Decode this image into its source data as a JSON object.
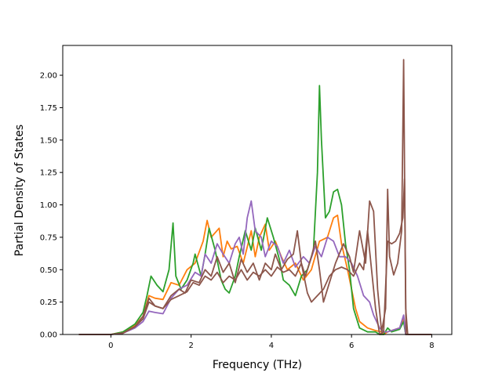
{
  "chart_data": {
    "type": "line",
    "title": "",
    "xlabel": "Frequency (THz)",
    "ylabel": "Partial Density of States",
    "xlim": [
      -1.2,
      8.5
    ],
    "ylim": [
      0.0,
      2.23
    ],
    "xticks": [
      "0",
      "2",
      "4",
      "6",
      "8"
    ],
    "yticks": [
      "0.00",
      "0.25",
      "0.50",
      "0.75",
      "1.00",
      "1.25",
      "1.50",
      "1.75",
      "2.00"
    ],
    "grid": false,
    "legend": "none",
    "series": [
      {
        "color": "#ff7f0e",
        "points": [
          [
            -0.8,
            0
          ],
          [
            0,
            0
          ],
          [
            0.3,
            0.02
          ],
          [
            0.6,
            0.07
          ],
          [
            0.8,
            0.14
          ],
          [
            0.95,
            0.3
          ],
          [
            1.1,
            0.28
          ],
          [
            1.3,
            0.27
          ],
          [
            1.5,
            0.4
          ],
          [
            1.7,
            0.38
          ],
          [
            1.9,
            0.5
          ],
          [
            2.1,
            0.55
          ],
          [
            2.3,
            0.72
          ],
          [
            2.4,
            0.88
          ],
          [
            2.5,
            0.75
          ],
          [
            2.7,
            0.82
          ],
          [
            2.8,
            0.6
          ],
          [
            2.9,
            0.72
          ],
          [
            3.0,
            0.66
          ],
          [
            3.15,
            0.68
          ],
          [
            3.3,
            0.55
          ],
          [
            3.5,
            0.8
          ],
          [
            3.6,
            0.6
          ],
          [
            3.7,
            0.75
          ],
          [
            3.85,
            0.85
          ],
          [
            3.95,
            0.65
          ],
          [
            4.1,
            0.72
          ],
          [
            4.25,
            0.6
          ],
          [
            4.4,
            0.5
          ],
          [
            4.6,
            0.55
          ],
          [
            4.8,
            0.42
          ],
          [
            5.0,
            0.5
          ],
          [
            5.2,
            0.72
          ],
          [
            5.4,
            0.75
          ],
          [
            5.55,
            0.9
          ],
          [
            5.65,
            0.92
          ],
          [
            5.75,
            0.7
          ],
          [
            5.9,
            0.5
          ],
          [
            6.0,
            0.35
          ],
          [
            6.1,
            0.2
          ],
          [
            6.2,
            0.1
          ],
          [
            6.4,
            0.05
          ],
          [
            6.6,
            0.03
          ],
          [
            6.75,
            0.02
          ],
          [
            6.8,
            0
          ],
          [
            6.9,
            0.02
          ],
          [
            7.0,
            0.03
          ],
          [
            7.2,
            0.05
          ],
          [
            7.3,
            0.12
          ],
          [
            7.35,
            0
          ],
          [
            8.0,
            0
          ]
        ]
      },
      {
        "color": "#2ca02c",
        "points": [
          [
            -0.8,
            0
          ],
          [
            0,
            0
          ],
          [
            0.3,
            0.02
          ],
          [
            0.6,
            0.08
          ],
          [
            0.8,
            0.17
          ],
          [
            0.9,
            0.3
          ],
          [
            1.0,
            0.45
          ],
          [
            1.15,
            0.38
          ],
          [
            1.3,
            0.33
          ],
          [
            1.45,
            0.5
          ],
          [
            1.55,
            0.86
          ],
          [
            1.62,
            0.45
          ],
          [
            1.75,
            0.35
          ],
          [
            1.9,
            0.42
          ],
          [
            2.05,
            0.55
          ],
          [
            2.1,
            0.62
          ],
          [
            2.25,
            0.45
          ],
          [
            2.35,
            0.62
          ],
          [
            2.45,
            0.82
          ],
          [
            2.6,
            0.65
          ],
          [
            2.75,
            0.42
          ],
          [
            2.85,
            0.35
          ],
          [
            2.95,
            0.32
          ],
          [
            3.1,
            0.45
          ],
          [
            3.2,
            0.6
          ],
          [
            3.35,
            0.8
          ],
          [
            3.5,
            0.65
          ],
          [
            3.6,
            0.82
          ],
          [
            3.75,
            0.65
          ],
          [
            3.9,
            0.9
          ],
          [
            4.05,
            0.75
          ],
          [
            4.2,
            0.58
          ],
          [
            4.3,
            0.42
          ],
          [
            4.45,
            0.38
          ],
          [
            4.6,
            0.3
          ],
          [
            4.75,
            0.45
          ],
          [
            4.9,
            0.5
          ],
          [
            5.05,
            0.65
          ],
          [
            5.15,
            1.25
          ],
          [
            5.2,
            1.92
          ],
          [
            5.25,
            1.5
          ],
          [
            5.35,
            0.9
          ],
          [
            5.45,
            0.95
          ],
          [
            5.55,
            1.1
          ],
          [
            5.65,
            1.12
          ],
          [
            5.75,
            1.0
          ],
          [
            5.85,
            0.7
          ],
          [
            5.95,
            0.5
          ],
          [
            6.05,
            0.2
          ],
          [
            6.2,
            0.05
          ],
          [
            6.4,
            0.02
          ],
          [
            6.6,
            0.02
          ],
          [
            6.7,
            0
          ],
          [
            6.8,
            0
          ],
          [
            6.9,
            0.05
          ],
          [
            7.0,
            0.02
          ],
          [
            7.2,
            0.04
          ],
          [
            7.3,
            0.1
          ],
          [
            7.35,
            0
          ],
          [
            8.0,
            0
          ]
        ]
      },
      {
        "color": "#9467bd",
        "points": [
          [
            -0.8,
            0
          ],
          [
            0,
            0
          ],
          [
            0.3,
            0.01
          ],
          [
            0.6,
            0.05
          ],
          [
            0.8,
            0.1
          ],
          [
            0.95,
            0.18
          ],
          [
            1.1,
            0.17
          ],
          [
            1.3,
            0.16
          ],
          [
            1.5,
            0.28
          ],
          [
            1.7,
            0.35
          ],
          [
            1.9,
            0.38
          ],
          [
            2.1,
            0.48
          ],
          [
            2.25,
            0.45
          ],
          [
            2.35,
            0.62
          ],
          [
            2.5,
            0.55
          ],
          [
            2.65,
            0.7
          ],
          [
            2.8,
            0.62
          ],
          [
            2.95,
            0.55
          ],
          [
            3.1,
            0.7
          ],
          [
            3.2,
            0.75
          ],
          [
            3.3,
            0.62
          ],
          [
            3.4,
            0.9
          ],
          [
            3.5,
            1.03
          ],
          [
            3.6,
            0.8
          ],
          [
            3.75,
            0.75
          ],
          [
            3.85,
            0.6
          ],
          [
            4.0,
            0.72
          ],
          [
            4.15,
            0.68
          ],
          [
            4.3,
            0.55
          ],
          [
            4.45,
            0.65
          ],
          [
            4.6,
            0.52
          ],
          [
            4.8,
            0.6
          ],
          [
            4.95,
            0.55
          ],
          [
            5.1,
            0.68
          ],
          [
            5.25,
            0.6
          ],
          [
            5.4,
            0.75
          ],
          [
            5.55,
            0.72
          ],
          [
            5.7,
            0.6
          ],
          [
            5.85,
            0.6
          ],
          [
            6.0,
            0.55
          ],
          [
            6.15,
            0.45
          ],
          [
            6.3,
            0.3
          ],
          [
            6.45,
            0.25
          ],
          [
            6.55,
            0.15
          ],
          [
            6.7,
            0.05
          ],
          [
            6.8,
            0.02
          ],
          [
            6.9,
            0.02
          ],
          [
            7.0,
            0.03
          ],
          [
            7.2,
            0.05
          ],
          [
            7.3,
            0.15
          ],
          [
            7.35,
            0
          ],
          [
            8.0,
            0
          ]
        ]
      },
      {
        "color": "#8c564b",
        "points": [
          [
            -0.8,
            0
          ],
          [
            0,
            0
          ],
          [
            0.3,
            0.01
          ],
          [
            0.6,
            0.06
          ],
          [
            0.8,
            0.14
          ],
          [
            0.95,
            0.28
          ],
          [
            1.1,
            0.22
          ],
          [
            1.3,
            0.2
          ],
          [
            1.5,
            0.3
          ],
          [
            1.7,
            0.35
          ],
          [
            1.85,
            0.32
          ],
          [
            2.0,
            0.42
          ],
          [
            2.2,
            0.4
          ],
          [
            2.35,
            0.5
          ],
          [
            2.5,
            0.45
          ],
          [
            2.65,
            0.6
          ],
          [
            2.8,
            0.48
          ],
          [
            2.95,
            0.55
          ],
          [
            3.1,
            0.4
          ],
          [
            3.25,
            0.58
          ],
          [
            3.4,
            0.48
          ],
          [
            3.55,
            0.55
          ],
          [
            3.7,
            0.42
          ],
          [
            3.85,
            0.55
          ],
          [
            4.0,
            0.5
          ],
          [
            4.1,
            0.62
          ],
          [
            4.25,
            0.5
          ],
          [
            4.4,
            0.58
          ],
          [
            4.55,
            0.62
          ],
          [
            4.65,
            0.8
          ],
          [
            4.75,
            0.55
          ],
          [
            4.85,
            0.45
          ],
          [
            5.0,
            0.6
          ],
          [
            5.1,
            0.72
          ],
          [
            5.2,
            0.5
          ],
          [
            5.3,
            0.25
          ],
          [
            5.45,
            0.4
          ],
          [
            5.6,
            0.55
          ],
          [
            5.8,
            0.7
          ],
          [
            5.95,
            0.6
          ],
          [
            6.05,
            0.48
          ],
          [
            6.2,
            0.8
          ],
          [
            6.35,
            0.55
          ],
          [
            6.45,
            1.03
          ],
          [
            6.55,
            0.95
          ],
          [
            6.65,
            0.35
          ],
          [
            6.75,
            0.02
          ],
          [
            6.85,
            0.2
          ],
          [
            6.9,
            1.12
          ],
          [
            6.95,
            0.6
          ],
          [
            7.05,
            0.46
          ],
          [
            7.15,
            0.55
          ],
          [
            7.25,
            0.8
          ],
          [
            7.3,
            2.12
          ],
          [
            7.35,
            0.2
          ],
          [
            7.4,
            0
          ],
          [
            8.0,
            0
          ]
        ]
      },
      {
        "color": "#8c564b",
        "points": [
          [
            -0.8,
            0
          ],
          [
            0,
            0
          ],
          [
            0.3,
            0.01
          ],
          [
            0.6,
            0.06
          ],
          [
            0.8,
            0.12
          ],
          [
            0.95,
            0.25
          ],
          [
            1.1,
            0.22
          ],
          [
            1.3,
            0.2
          ],
          [
            1.5,
            0.27
          ],
          [
            1.7,
            0.3
          ],
          [
            1.9,
            0.33
          ],
          [
            2.05,
            0.4
          ],
          [
            2.2,
            0.38
          ],
          [
            2.35,
            0.45
          ],
          [
            2.5,
            0.42
          ],
          [
            2.65,
            0.48
          ],
          [
            2.8,
            0.4
          ],
          [
            2.95,
            0.45
          ],
          [
            3.1,
            0.42
          ],
          [
            3.25,
            0.5
          ],
          [
            3.4,
            0.42
          ],
          [
            3.55,
            0.48
          ],
          [
            3.7,
            0.45
          ],
          [
            3.85,
            0.5
          ],
          [
            4.0,
            0.45
          ],
          [
            4.15,
            0.52
          ],
          [
            4.3,
            0.48
          ],
          [
            4.45,
            0.5
          ],
          [
            4.6,
            0.45
          ],
          [
            4.75,
            0.55
          ],
          [
            4.9,
            0.32
          ],
          [
            5.0,
            0.25
          ],
          [
            5.15,
            0.3
          ],
          [
            5.3,
            0.35
          ],
          [
            5.45,
            0.45
          ],
          [
            5.6,
            0.5
          ],
          [
            5.75,
            0.52
          ],
          [
            5.9,
            0.5
          ],
          [
            6.05,
            0.45
          ],
          [
            6.2,
            0.55
          ],
          [
            6.3,
            0.5
          ],
          [
            6.4,
            0.8
          ],
          [
            6.5,
            0.5
          ],
          [
            6.6,
            0.2
          ],
          [
            6.7,
            0
          ],
          [
            6.8,
            0.02
          ],
          [
            6.9,
            0.72
          ],
          [
            7.0,
            0.7
          ],
          [
            7.1,
            0.72
          ],
          [
            7.2,
            0.78
          ],
          [
            7.28,
            0.9
          ],
          [
            7.32,
            1.2
          ],
          [
            7.36,
            0
          ],
          [
            8.0,
            0
          ]
        ]
      }
    ]
  }
}
